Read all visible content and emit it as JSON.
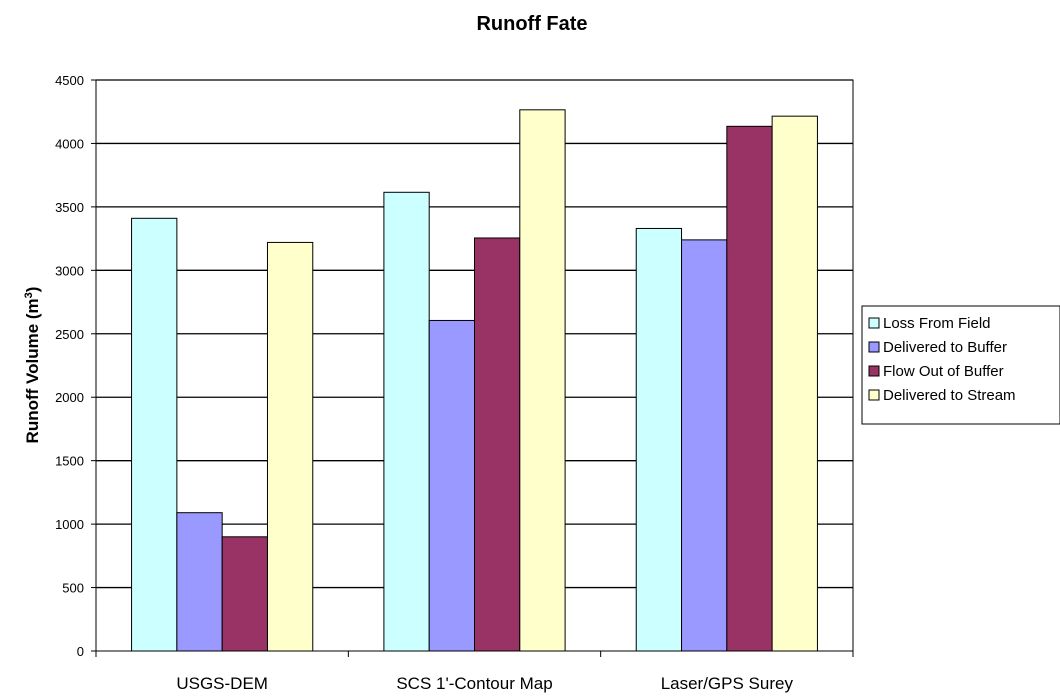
{
  "chart_data": {
    "type": "bar",
    "title": "Runoff Fate",
    "xlabel": "",
    "ylabel": "Runoff Volume (m",
    "ylabel_sup": "3",
    "ylabel_end": ")",
    "categories": [
      "USGS-DEM",
      "SCS 1'-Contour Map",
      "Laser/GPS Surey"
    ],
    "ylim": [
      0,
      4500
    ],
    "yticks": [
      0,
      500,
      1000,
      1500,
      2000,
      2500,
      3000,
      3500,
      4000,
      4500
    ],
    "grid": true,
    "legend_position": "right",
    "series": [
      {
        "name": "Loss From Field",
        "color": "#ccffff",
        "values": [
          3410,
          3615,
          3330
        ]
      },
      {
        "name": "Delivered to Buffer",
        "color": "#9999ff",
        "values": [
          1090,
          2605,
          3240
        ]
      },
      {
        "name": "Flow Out of Buffer",
        "color": "#993366",
        "values": [
          900,
          3255,
          4135
        ]
      },
      {
        "name": "Delivered to Stream",
        "color": "#ffffcc",
        "values": [
          3220,
          4265,
          4215
        ]
      }
    ]
  }
}
